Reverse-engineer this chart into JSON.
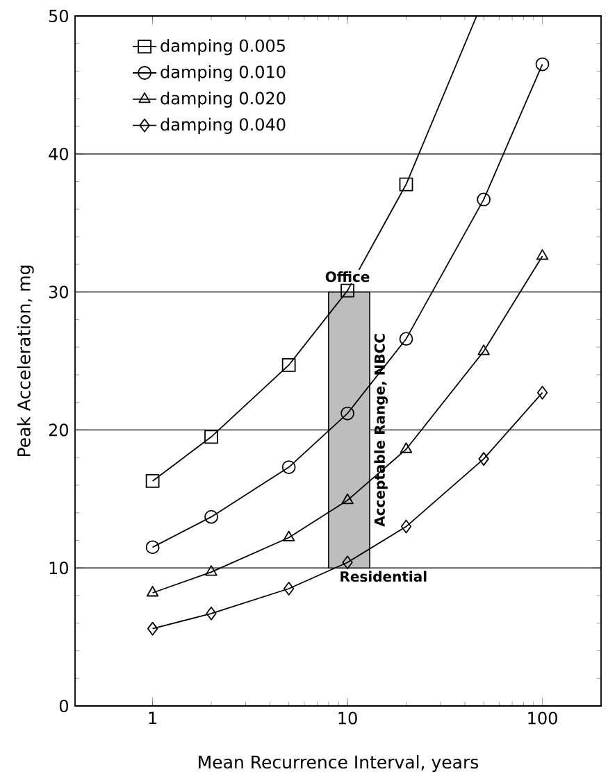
{
  "chart_data": {
    "type": "line",
    "xlabel": "Mean Recurrence Interval, years",
    "ylabel": "Peak Acceleration,  mg",
    "log": "x",
    "xlim": [
      0.4,
      200
    ],
    "xticks": [
      1,
      10,
      100
    ],
    "ylim": [
      0,
      50
    ],
    "yticks": [
      0,
      10,
      20,
      30,
      40,
      50
    ],
    "grid": "y",
    "legend": "top left",
    "line_style": "solid",
    "series": [
      {
        "name": "damping  0.005",
        "color": "#000000",
        "marker": "square",
        "x": [
          1,
          2,
          5,
          10,
          20
        ],
        "values": [
          16.3,
          19.5,
          24.7,
          30.1,
          37.8
        ]
      },
      {
        "name": "damping  0.010",
        "color": "#000000",
        "marker": "circle",
        "x": [
          1,
          2,
          5,
          10,
          20,
          50,
          100
        ],
        "values": [
          11.5,
          13.7,
          17.3,
          21.2,
          26.6,
          36.7,
          46.5
        ]
      },
      {
        "name": "damping  0.020",
        "color": "#000000",
        "marker": "triangle",
        "x": [
          1,
          2,
          5,
          10,
          20,
          50,
          100
        ],
        "values": [
          8.2,
          9.7,
          12.2,
          14.9,
          18.6,
          25.7,
          32.6
        ]
      },
      {
        "name": "damping  0.040",
        "color": "#000000",
        "marker": "diamond",
        "x": [
          1,
          2,
          5,
          10,
          20,
          50,
          100
        ],
        "values": [
          5.6,
          6.7,
          8.5,
          10.4,
          13.0,
          17.9,
          22.7
        ]
      },
      {
        "color": "#000000",
        "marker": "none",
        "x": [
          20,
          46
        ],
        "values": [
          37.8,
          50
        ]
      }
    ],
    "bands": [
      {
        "axis": "x",
        "from": 8,
        "to": 13,
        "label": "Acceptable Range, NBCC",
        "color": "#bdbdbd"
      }
    ],
    "annotations": [
      {
        "text": "Office",
        "x": 10,
        "y": 30
      },
      {
        "text": "Residential",
        "x": 10,
        "y": 10
      }
    ]
  }
}
